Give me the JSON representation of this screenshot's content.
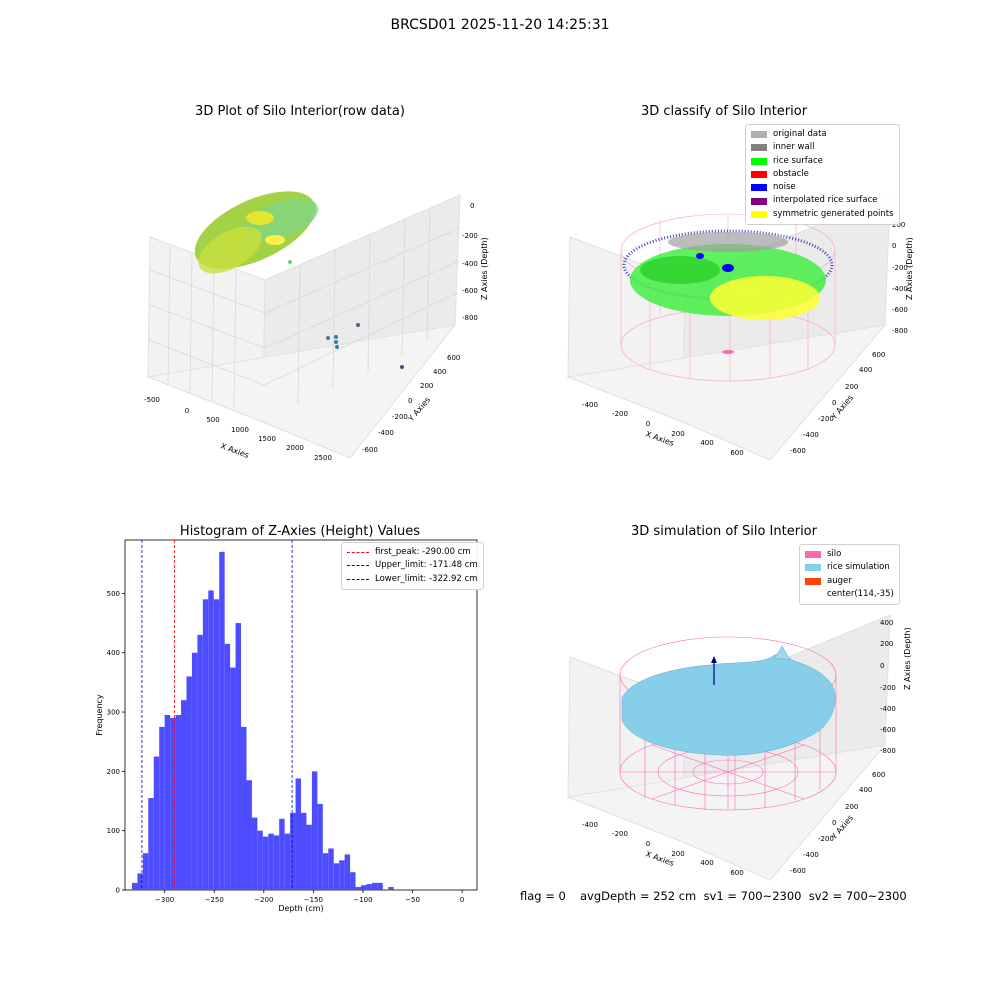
{
  "suptitle": "BRCSD01 2025-11-20 14:25:31",
  "panels": {
    "raw": {
      "title": "3D Plot of Silo Interior(row data)",
      "xlabel": "X Axies",
      "ylabel": "Y Axies",
      "zlabel": "Z Axies (Depth)",
      "xticks": [
        "-500",
        "0",
        "500",
        "1000",
        "1500",
        "2000",
        "2500"
      ],
      "yticks": [
        "-600",
        "-400",
        "-200",
        "0",
        "200",
        "400",
        "600"
      ],
      "zticks": [
        "0",
        "-200",
        "-400",
        "-600",
        "-800"
      ]
    },
    "classify": {
      "title": "3D classify of Silo Interior",
      "xlabel": "X Axies",
      "ylabel": "Y Axies",
      "zlabel": "Z Axies (Depth)",
      "xticks": [
        "-400",
        "-200",
        "0",
        "200",
        "400",
        "600"
      ],
      "yticks": [
        "-600",
        "-400",
        "-200",
        "0",
        "200",
        "400",
        "600"
      ],
      "zticks": [
        "200",
        "0",
        "-200",
        "-400",
        "-600",
        "-800"
      ],
      "legend": [
        {
          "label": "original data",
          "color": "#b0b0b0"
        },
        {
          "label": "inner wall",
          "color": "#808080"
        },
        {
          "label": "rice surface",
          "color": "#00ff00"
        },
        {
          "label": "obstacle",
          "color": "#ff0000"
        },
        {
          "label": "noise",
          "color": "#0000ff"
        },
        {
          "label": "interpolated rice surface",
          "color": "#800080"
        },
        {
          "label": "symmetric generated points",
          "color": "#ffff00"
        }
      ]
    },
    "simulation": {
      "title": "3D simulation of Silo Interior",
      "xlabel": "X Axies",
      "ylabel": "Y Axies",
      "zlabel": "Z Axies (Depth)",
      "xticks": [
        "-400",
        "-200",
        "0",
        "200",
        "400",
        "600"
      ],
      "yticks": [
        "-600",
        "-400",
        "-200",
        "0",
        "200",
        "400",
        "600"
      ],
      "zticks": [
        "400",
        "200",
        "0",
        "-200",
        "-400",
        "-600",
        "-800"
      ],
      "legend": [
        {
          "label": "silo",
          "color": "#ff69b4"
        },
        {
          "label": "rice simulation",
          "color": "#87ceeb"
        },
        {
          "label": "auger",
          "color": "#ff4500"
        },
        {
          "label": "center(114,-35)",
          "color": ""
        }
      ]
    }
  },
  "chart_data": [
    {
      "type": "bar",
      "title": "Histogram of Z-Axies (Height) Values",
      "xlabel": "Depth (cm)",
      "ylabel": "Frequency",
      "xlim": [
        -340,
        15
      ],
      "ylim": [
        0,
        590
      ],
      "xticks": [
        -300,
        -250,
        -200,
        -150,
        -100,
        -50,
        0
      ],
      "yticks": [
        0,
        100,
        200,
        300,
        400,
        500
      ],
      "bar_color": "#4d4dff",
      "bin_width": 5.5,
      "bin_start": -333,
      "values": [
        12,
        28,
        62,
        155,
        225,
        275,
        295,
        290,
        295,
        320,
        360,
        400,
        430,
        490,
        505,
        490,
        570,
        415,
        375,
        450,
        275,
        185,
        122,
        100,
        90,
        95,
        92,
        120,
        95,
        130,
        188,
        130,
        110,
        200,
        145,
        62,
        70,
        45,
        50,
        60,
        30,
        5,
        8,
        10,
        12,
        12,
        0,
        5
      ],
      "lines": [
        {
          "label": "first_peak: -290.00 cm",
          "x": -290.0,
          "color": "#ff0000"
        },
        {
          "label": "Upper_limit: -171.48 cm",
          "x": -171.48,
          "color": "#0000cc"
        },
        {
          "label": "Lower_limit: -322.92 cm",
          "x": -322.92,
          "color": "#0000cc"
        }
      ],
      "legend_position": "upper-right"
    }
  ],
  "footer": {
    "flag": "flag = 0",
    "avg": "avgDepth = 252 cm  sv1 = 700~2300  sv2 = 700~2300"
  }
}
